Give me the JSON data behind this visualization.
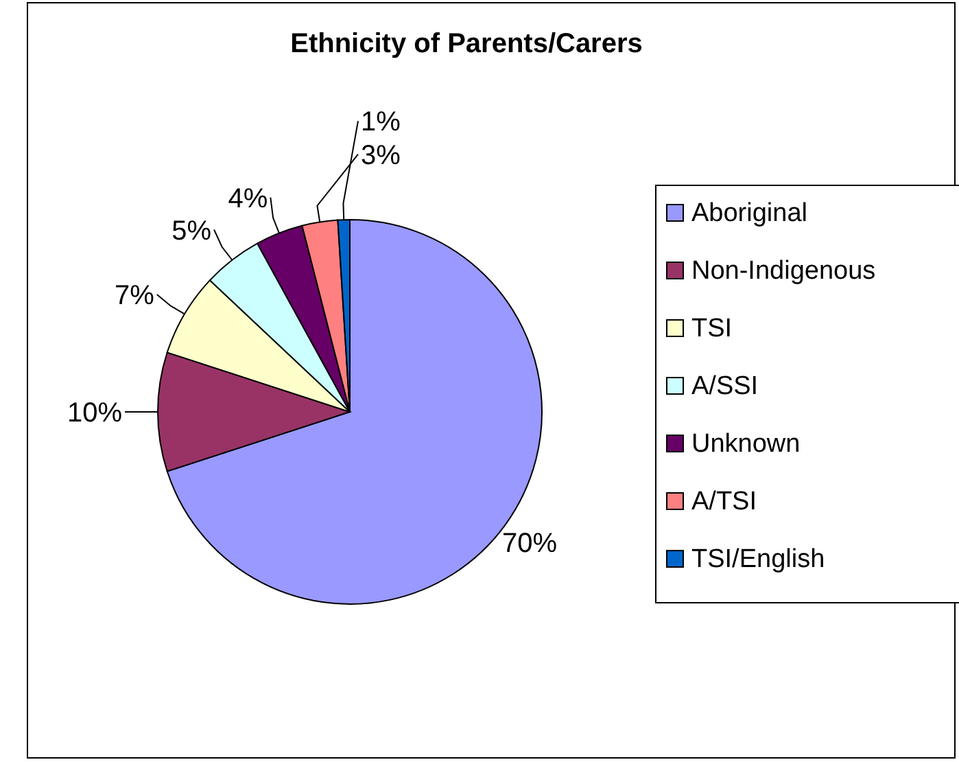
{
  "chart_data": {
    "type": "pie",
    "title": "Ethnicity of Parents/Carers",
    "categories": [
      "Aboriginal",
      "Non-Indigenous",
      "TSI",
      "A/SSI",
      "Unknown",
      "A/TSI",
      "TSI/English"
    ],
    "values": [
      70,
      10,
      7,
      5,
      4,
      3,
      1
    ],
    "colors": [
      "#9999ff",
      "#993366",
      "#ffffcc",
      "#ccffff",
      "#660066",
      "#ff8080",
      "#0066cc"
    ],
    "value_labels": [
      "70%",
      "10%",
      "7%",
      "5%",
      "4%",
      "3%",
      "1%"
    ],
    "legend": "right"
  }
}
